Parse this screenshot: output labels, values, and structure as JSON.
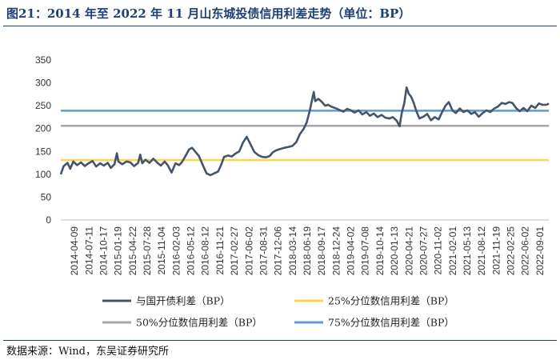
{
  "header": {
    "title": "图21：2014 年至 2022 年 11 月山东城投债信用利差走势（单位：BP）"
  },
  "footer": {
    "source": "数据来源：Wind，东吴证券研究所"
  },
  "chart_data": {
    "type": "line",
    "title": "2014 年至 2022 年 11 月山东城投债信用利差走势（单位：BP）",
    "xlabel": "",
    "ylabel": "",
    "ylim": [
      0,
      350
    ],
    "yticks": [
      0,
      50,
      100,
      150,
      200,
      250,
      300,
      350
    ],
    "grid": false,
    "legend_position": "bottom",
    "x_tick_labels": [
      "2014-04-09",
      "2014-07-11",
      "2014-10-17",
      "2015-01-19",
      "2015-04-22",
      "2015-07-28",
      "2015-11-04",
      "2016-02-03",
      "2016-05-12",
      "2016-08-12",
      "2016-11-21",
      "2017-02-27",
      "2017-06-02",
      "2017-08-31",
      "2017-12-06",
      "2018-03-14",
      "2018-06-19",
      "2018-09-17",
      "2018-12-24",
      "2019-04-02",
      "2019-07-08",
      "2019-10-14",
      "2020-01-13",
      "2020-04-21",
      "2020-07-27",
      "2020-11-02",
      "2021-02-01",
      "2021-05-13",
      "2021-08-12",
      "2021-11-19",
      "2022-02-25",
      "2022-06-02",
      "2022-09-01"
    ],
    "x_range": [
      "2014-01-01",
      "2022-11-30"
    ],
    "series": [
      {
        "name": "与国开债利差（BP）",
        "color": "#44546a",
        "kind": "line",
        "points": [
          [
            "2014-01-01",
            100
          ],
          [
            "2014-01-20",
            118
          ],
          [
            "2014-02-15",
            125
          ],
          [
            "2014-03-05",
            112
          ],
          [
            "2014-03-25",
            128
          ],
          [
            "2014-04-20",
            120
          ],
          [
            "2014-05-15",
            126
          ],
          [
            "2014-06-10",
            118
          ],
          [
            "2014-07-05",
            124
          ],
          [
            "2014-08-01",
            129
          ],
          [
            "2014-08-25",
            117
          ],
          [
            "2014-09-20",
            124
          ],
          [
            "2014-10-15",
            119
          ],
          [
            "2014-11-10",
            125
          ],
          [
            "2014-12-01",
            114
          ],
          [
            "2014-12-25",
            122
          ],
          [
            "2015-01-10",
            146
          ],
          [
            "2015-01-20",
            128
          ],
          [
            "2015-02-15",
            122
          ],
          [
            "2015-03-15",
            128
          ],
          [
            "2015-04-10",
            126
          ],
          [
            "2015-05-05",
            118
          ],
          [
            "2015-06-01",
            125
          ],
          [
            "2015-06-15",
            143
          ],
          [
            "2015-06-28",
            124
          ],
          [
            "2015-07-20",
            132
          ],
          [
            "2015-08-15",
            125
          ],
          [
            "2015-09-10",
            134
          ],
          [
            "2015-10-05",
            126
          ],
          [
            "2015-10-30",
            119
          ],
          [
            "2015-11-25",
            128
          ],
          [
            "2015-12-15",
            120
          ],
          [
            "2016-01-10",
            104
          ],
          [
            "2016-02-05",
            124
          ],
          [
            "2016-03-01",
            120
          ],
          [
            "2016-03-20",
            127
          ],
          [
            "2016-04-15",
            142
          ],
          [
            "2016-05-05",
            154
          ],
          [
            "2016-05-25",
            158
          ],
          [
            "2016-06-15",
            150
          ],
          [
            "2016-07-10",
            140
          ],
          [
            "2016-08-05",
            120
          ],
          [
            "2016-08-30",
            102
          ],
          [
            "2016-09-25",
            98
          ],
          [
            "2016-10-20",
            102
          ],
          [
            "2016-11-15",
            106
          ],
          [
            "2016-12-05",
            120
          ],
          [
            "2016-12-25",
            138
          ],
          [
            "2017-01-20",
            141
          ],
          [
            "2017-02-15",
            139
          ],
          [
            "2017-03-10",
            145
          ],
          [
            "2017-04-05",
            150
          ],
          [
            "2017-05-01",
            170
          ],
          [
            "2017-05-25",
            182
          ],
          [
            "2017-06-20",
            165
          ],
          [
            "2017-07-15",
            149
          ],
          [
            "2017-08-10",
            142
          ],
          [
            "2017-09-05",
            138
          ],
          [
            "2017-10-01",
            137
          ],
          [
            "2017-10-25",
            140
          ],
          [
            "2017-11-15",
            148
          ],
          [
            "2017-12-05",
            152
          ],
          [
            "2018-01-01",
            155
          ],
          [
            "2018-02-01",
            158
          ],
          [
            "2018-03-01",
            160
          ],
          [
            "2018-03-25",
            162
          ],
          [
            "2018-04-20",
            170
          ],
          [
            "2018-05-15",
            188
          ],
          [
            "2018-06-10",
            200
          ],
          [
            "2018-06-30",
            214
          ],
          [
            "2018-07-20",
            240
          ],
          [
            "2018-08-05",
            265
          ],
          [
            "2018-08-15",
            280
          ],
          [
            "2018-08-25",
            260
          ],
          [
            "2018-09-15",
            265
          ],
          [
            "2018-10-10",
            258
          ],
          [
            "2018-10-30",
            250
          ],
          [
            "2018-11-20",
            252
          ],
          [
            "2018-12-10",
            248
          ],
          [
            "2019-01-05",
            245
          ],
          [
            "2019-02-01",
            241
          ],
          [
            "2019-03-01",
            237
          ],
          [
            "2019-03-25",
            243
          ],
          [
            "2019-04-20",
            240
          ],
          [
            "2019-05-15",
            235
          ],
          [
            "2019-06-10",
            240
          ],
          [
            "2019-07-05",
            231
          ],
          [
            "2019-08-01",
            236
          ],
          [
            "2019-08-25",
            228
          ],
          [
            "2019-09-20",
            233
          ],
          [
            "2019-10-15",
            225
          ],
          [
            "2019-11-10",
            230
          ],
          [
            "2019-12-05",
            224
          ],
          [
            "2020-01-01",
            222
          ],
          [
            "2020-01-25",
            225
          ],
          [
            "2020-02-20",
            217
          ],
          [
            "2020-03-10",
            205
          ],
          [
            "2020-03-25",
            235
          ],
          [
            "2020-04-10",
            255
          ],
          [
            "2020-04-25",
            290
          ],
          [
            "2020-05-10",
            276
          ],
          [
            "2020-05-25",
            270
          ],
          [
            "2020-06-10",
            258
          ],
          [
            "2020-06-30",
            238
          ],
          [
            "2020-07-20",
            222
          ],
          [
            "2020-08-15",
            226
          ],
          [
            "2020-09-10",
            232
          ],
          [
            "2020-10-05",
            218
          ],
          [
            "2020-10-30",
            225
          ],
          [
            "2020-11-25",
            220
          ],
          [
            "2020-12-20",
            237
          ],
          [
            "2021-01-10",
            250
          ],
          [
            "2021-02-01",
            258
          ],
          [
            "2021-02-25",
            240
          ],
          [
            "2021-03-20",
            234
          ],
          [
            "2021-04-15",
            244
          ],
          [
            "2021-05-10",
            236
          ],
          [
            "2021-06-05",
            240
          ],
          [
            "2021-07-01",
            232
          ],
          [
            "2021-07-25",
            236
          ],
          [
            "2021-08-20",
            226
          ],
          [
            "2021-09-15",
            234
          ],
          [
            "2021-10-10",
            240
          ],
          [
            "2021-11-05",
            236
          ],
          [
            "2021-12-01",
            244
          ],
          [
            "2021-12-25",
            248
          ],
          [
            "2022-01-20",
            256
          ],
          [
            "2022-02-15",
            254
          ],
          [
            "2022-03-10",
            258
          ],
          [
            "2022-04-01",
            256
          ],
          [
            "2022-04-25",
            245
          ],
          [
            "2022-05-20",
            238
          ],
          [
            "2022-06-15",
            245
          ],
          [
            "2022-07-10",
            238
          ],
          [
            "2022-08-05",
            250
          ],
          [
            "2022-09-01",
            245
          ],
          [
            "2022-09-25",
            255
          ],
          [
            "2022-10-20",
            252
          ],
          [
            "2022-11-15",
            252
          ],
          [
            "2022-11-30",
            255
          ]
        ]
      },
      {
        "name": "25%分位数信用利差（BP）",
        "color": "#ffd44d",
        "kind": "hline",
        "value": 131
      },
      {
        "name": "50%分位数信用利差（BP）",
        "color": "#a6a6a6",
        "kind": "hline",
        "value": 206
      },
      {
        "name": "75%分位数信用利差（BP）",
        "color": "#5b9bd5",
        "kind": "hline",
        "value": 239
      }
    ]
  }
}
